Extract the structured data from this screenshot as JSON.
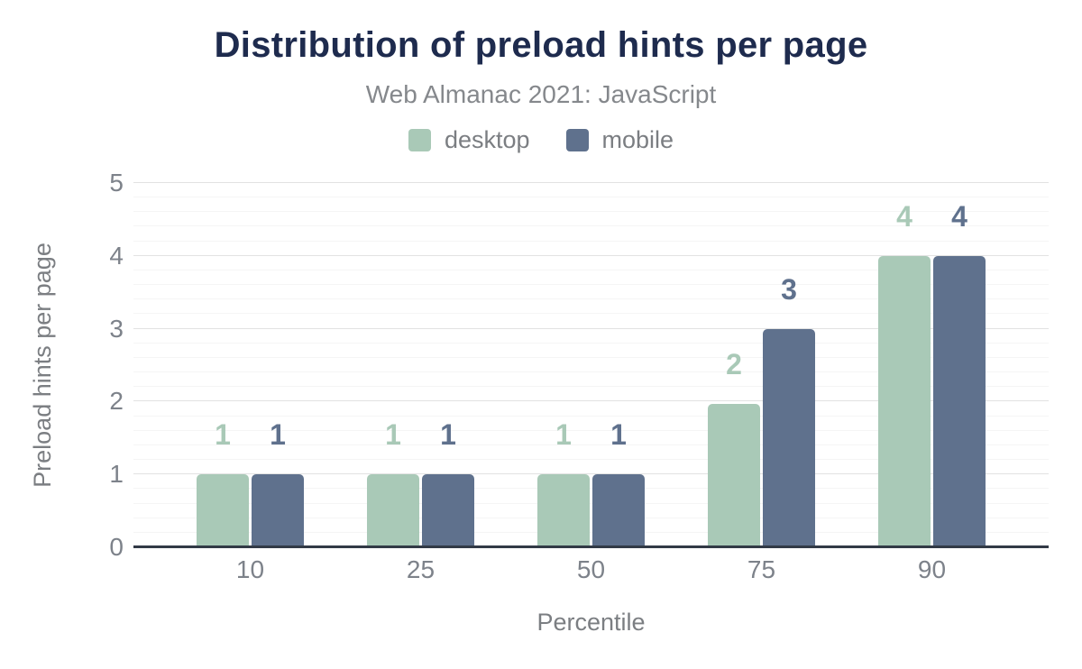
{
  "header": {
    "title": "Distribution of preload hints per page",
    "subtitle": "Web Almanac 2021: JavaScript"
  },
  "legend": {
    "items": [
      {
        "label": "desktop",
        "color": "#a9c9b7"
      },
      {
        "label": "mobile",
        "color": "#5f718d"
      }
    ]
  },
  "chart_data": {
    "type": "bar",
    "title": "Distribution of preload hints per page",
    "subtitle": "Web Almanac 2021: JavaScript",
    "categories": [
      "10",
      "25",
      "50",
      "75",
      "90"
    ],
    "series": [
      {
        "name": "desktop",
        "color": "#a9c9b7",
        "values": [
          1,
          1,
          1,
          2,
          4
        ],
        "drawn_values": [
          1,
          1,
          1,
          1.97,
          4
        ],
        "data_labels": [
          "1",
          "1",
          "1",
          "2",
          "4"
        ]
      },
      {
        "name": "mobile",
        "color": "#5f718d",
        "values": [
          1,
          1,
          1,
          3,
          4
        ],
        "drawn_values": [
          1,
          1,
          1,
          3,
          4
        ],
        "data_labels": [
          "1",
          "1",
          "1",
          "3",
          "4"
        ]
      }
    ],
    "xlabel": "Percentile",
    "ylabel": "Preload hints per page",
    "ylim": [
      0,
      5
    ],
    "y_major_step": 1,
    "y_minor_step": 0.2,
    "y_tick_labels": [
      "0",
      "1",
      "2",
      "3",
      "4",
      "5"
    ],
    "grid": true,
    "legend_position": "top",
    "bar_data_labels": true
  },
  "colors": {
    "title": "#1e2b4e",
    "subtitle_text": "#85888c",
    "tick_text": "#7d828a",
    "axis_line": "#323a46",
    "gridline_major": "#e2e2e2",
    "gridline_minor": "#f5f5f5",
    "background": "#ffffff"
  }
}
